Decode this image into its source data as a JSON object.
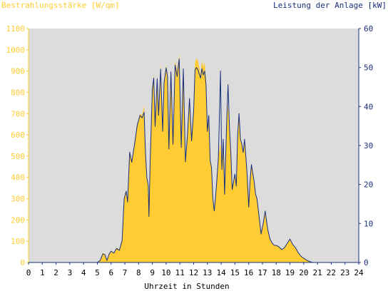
{
  "chart_data": {
    "type": "area",
    "title_left": "Bestrahlungsstärke [W/qm]",
    "title_right": "Leistung der Anlage [kW]",
    "xlabel": "Uhrzeit in Stunden",
    "xlim": [
      0,
      24
    ],
    "x_ticks": [
      0,
      1,
      2,
      3,
      4,
      5,
      6,
      7,
      8,
      9,
      10,
      11,
      12,
      13,
      14,
      15,
      16,
      17,
      18,
      19,
      20,
      21,
      22,
      23,
      24
    ],
    "y_left_lim": [
      0,
      1100
    ],
    "y_left_ticks": [
      0,
      100,
      200,
      300,
      400,
      500,
      600,
      700,
      800,
      900,
      1000,
      1100
    ],
    "y_right_lim": [
      0,
      60
    ],
    "y_right_ticks": [
      0,
      10,
      20,
      30,
      40,
      50,
      60
    ],
    "grid": false,
    "plot_background": "#dcdcdc",
    "series": [
      {
        "name": "Bestrahlungsstärke",
        "axis": "left",
        "style": "filled-area",
        "color": "#ffcc33",
        "points": [
          [
            0,
            0
          ],
          [
            5.0,
            0
          ],
          [
            5.2,
            10
          ],
          [
            5.4,
            45
          ],
          [
            5.55,
            40
          ],
          [
            5.7,
            10
          ],
          [
            5.85,
            40
          ],
          [
            6.0,
            55
          ],
          [
            6.2,
            45
          ],
          [
            6.4,
            70
          ],
          [
            6.6,
            60
          ],
          [
            6.8,
            110
          ],
          [
            6.95,
            300
          ],
          [
            7.1,
            340
          ],
          [
            7.2,
            280
          ],
          [
            7.35,
            520
          ],
          [
            7.5,
            480
          ],
          [
            7.7,
            560
          ],
          [
            7.9,
            650
          ],
          [
            8.1,
            700
          ],
          [
            8.25,
            690
          ],
          [
            8.4,
            740
          ],
          [
            8.5,
            520
          ],
          [
            8.6,
            400
          ],
          [
            8.7,
            360
          ],
          [
            8.75,
            220
          ],
          [
            8.85,
            500
          ],
          [
            9.0,
            820
          ],
          [
            9.1,
            880
          ],
          [
            9.2,
            640
          ],
          [
            9.35,
            870
          ],
          [
            9.45,
            700
          ],
          [
            9.6,
            940
          ],
          [
            9.75,
            620
          ],
          [
            9.85,
            850
          ],
          [
            10.0,
            930
          ],
          [
            10.1,
            880
          ],
          [
            10.2,
            540
          ],
          [
            10.35,
            900
          ],
          [
            10.5,
            560
          ],
          [
            10.65,
            950
          ],
          [
            10.8,
            900
          ],
          [
            10.95,
            980
          ],
          [
            11.1,
            550
          ],
          [
            11.25,
            920
          ],
          [
            11.4,
            480
          ],
          [
            11.55,
            600
          ],
          [
            11.7,
            780
          ],
          [
            11.85,
            580
          ],
          [
            12.0,
            720
          ],
          [
            12.1,
            940
          ],
          [
            12.2,
            960
          ],
          [
            12.3,
            950
          ],
          [
            12.4,
            920
          ],
          [
            12.5,
            880
          ],
          [
            12.6,
            950
          ],
          [
            12.7,
            920
          ],
          [
            12.8,
            940
          ],
          [
            12.9,
            860
          ],
          [
            13.0,
            620
          ],
          [
            13.1,
            700
          ],
          [
            13.2,
            480
          ],
          [
            13.3,
            450
          ],
          [
            13.4,
            300
          ],
          [
            13.5,
            250
          ],
          [
            13.65,
            360
          ],
          [
            13.8,
            500
          ],
          [
            13.95,
            560
          ],
          [
            14.05,
            440
          ],
          [
            14.15,
            580
          ],
          [
            14.25,
            320
          ],
          [
            14.4,
            660
          ],
          [
            14.5,
            740
          ],
          [
            14.6,
            640
          ],
          [
            14.7,
            520
          ],
          [
            14.8,
            340
          ],
          [
            14.9,
            380
          ],
          [
            15.0,
            420
          ],
          [
            15.1,
            360
          ],
          [
            15.2,
            600
          ],
          [
            15.3,
            700
          ],
          [
            15.4,
            580
          ],
          [
            15.5,
            560
          ],
          [
            15.6,
            520
          ],
          [
            15.7,
            580
          ],
          [
            15.8,
            500
          ],
          [
            15.9,
            400
          ],
          [
            16.0,
            260
          ],
          [
            16.1,
            380
          ],
          [
            16.2,
            460
          ],
          [
            16.3,
            420
          ],
          [
            16.4,
            380
          ],
          [
            16.5,
            320
          ],
          [
            16.6,
            300
          ],
          [
            16.75,
            220
          ],
          [
            16.9,
            130
          ],
          [
            17.05,
            180
          ],
          [
            17.2,
            240
          ],
          [
            17.3,
            190
          ],
          [
            17.4,
            150
          ],
          [
            17.55,
            110
          ],
          [
            17.7,
            90
          ],
          [
            17.85,
            80
          ],
          [
            18.0,
            80
          ],
          [
            18.2,
            75
          ],
          [
            18.4,
            60
          ],
          [
            18.6,
            70
          ],
          [
            18.8,
            90
          ],
          [
            19.0,
            110
          ],
          [
            19.2,
            85
          ],
          [
            19.4,
            70
          ],
          [
            19.6,
            45
          ],
          [
            19.8,
            30
          ],
          [
            20.0,
            20
          ],
          [
            20.2,
            12
          ],
          [
            20.4,
            6
          ],
          [
            20.55,
            2
          ],
          [
            20.7,
            0
          ],
          [
            24,
            0
          ]
        ]
      },
      {
        "name": "Leistung der Anlage",
        "axis": "right",
        "style": "line",
        "color": "#1a2f7a",
        "points": [
          [
            0,
            0
          ],
          [
            5.0,
            0
          ],
          [
            5.2,
            0.5
          ],
          [
            5.4,
            2.2
          ],
          [
            5.55,
            2.0
          ],
          [
            5.7,
            0.5
          ],
          [
            5.85,
            2.1
          ],
          [
            6.0,
            2.9
          ],
          [
            6.2,
            2.4
          ],
          [
            6.4,
            3.6
          ],
          [
            6.6,
            3.1
          ],
          [
            6.8,
            5.6
          ],
          [
            6.95,
            16.4
          ],
          [
            7.1,
            18.3
          ],
          [
            7.2,
            15.5
          ],
          [
            7.35,
            28.3
          ],
          [
            7.5,
            25.7
          ],
          [
            7.7,
            30.2
          ],
          [
            7.9,
            35.2
          ],
          [
            8.1,
            37.7
          ],
          [
            8.25,
            37.1
          ],
          [
            8.4,
            38.5
          ],
          [
            8.5,
            28.0
          ],
          [
            8.6,
            21.7
          ],
          [
            8.7,
            19.8
          ],
          [
            8.75,
            11.8
          ],
          [
            8.85,
            27.0
          ],
          [
            9.0,
            44.6
          ],
          [
            9.1,
            47.3
          ],
          [
            9.2,
            34.9
          ],
          [
            9.35,
            47.1
          ],
          [
            9.45,
            37.7
          ],
          [
            9.6,
            49.6
          ],
          [
            9.75,
            33.6
          ],
          [
            9.85,
            46.1
          ],
          [
            10.0,
            49.9
          ],
          [
            10.1,
            47.7
          ],
          [
            10.2,
            29.1
          ],
          [
            10.35,
            48.9
          ],
          [
            10.5,
            30.3
          ],
          [
            10.65,
            50.6
          ],
          [
            10.8,
            47.7
          ],
          [
            10.95,
            52.2
          ],
          [
            11.1,
            29.5
          ],
          [
            11.25,
            49.7
          ],
          [
            11.4,
            25.8
          ],
          [
            11.55,
            32.6
          ],
          [
            11.7,
            42.1
          ],
          [
            11.85,
            31.2
          ],
          [
            12.0,
            38.9
          ],
          [
            12.1,
            49.4
          ],
          [
            12.2,
            50.0
          ],
          [
            12.3,
            49.5
          ],
          [
            12.4,
            48.4
          ],
          [
            12.5,
            47.3
          ],
          [
            12.6,
            49.7
          ],
          [
            12.7,
            48.1
          ],
          [
            12.8,
            49.1
          ],
          [
            12.9,
            45.6
          ],
          [
            13.0,
            33.6
          ],
          [
            13.1,
            37.7
          ],
          [
            13.2,
            26.2
          ],
          [
            13.3,
            24.3
          ],
          [
            13.4,
            16.2
          ],
          [
            13.5,
            13.2
          ],
          [
            13.65,
            19.3
          ],
          [
            13.8,
            27.0
          ],
          [
            13.95,
            49.1
          ],
          [
            14.05,
            23.8
          ],
          [
            14.15,
            31.6
          ],
          [
            14.25,
            17.5
          ],
          [
            14.4,
            36.0
          ],
          [
            14.5,
            45.6
          ],
          [
            14.6,
            34.9
          ],
          [
            14.7,
            28.2
          ],
          [
            14.8,
            18.7
          ],
          [
            14.9,
            20.7
          ],
          [
            15.0,
            22.7
          ],
          [
            15.1,
            19.6
          ],
          [
            15.2,
            32.8
          ],
          [
            15.3,
            38.2
          ],
          [
            15.4,
            31.6
          ],
          [
            15.5,
            30.4
          ],
          [
            15.6,
            28.2
          ],
          [
            15.7,
            31.6
          ],
          [
            15.8,
            27.0
          ],
          [
            15.9,
            21.8
          ],
          [
            16.0,
            14.2
          ],
          [
            16.1,
            20.9
          ],
          [
            16.2,
            25.1
          ],
          [
            16.3,
            22.9
          ],
          [
            16.4,
            20.7
          ],
          [
            16.5,
            17.5
          ],
          [
            16.6,
            16.4
          ],
          [
            16.75,
            12.0
          ],
          [
            16.9,
            7.3
          ],
          [
            17.05,
            9.9
          ],
          [
            17.2,
            13.2
          ],
          [
            17.3,
            10.5
          ],
          [
            17.4,
            8.2
          ],
          [
            17.55,
            6.0
          ],
          [
            17.7,
            5.0
          ],
          [
            17.85,
            4.4
          ],
          [
            18.0,
            4.4
          ],
          [
            18.2,
            4.0
          ],
          [
            18.4,
            3.3
          ],
          [
            18.6,
            3.8
          ],
          [
            18.8,
            4.9
          ],
          [
            19.0,
            6.0
          ],
          [
            19.2,
            4.6
          ],
          [
            19.4,
            3.8
          ],
          [
            19.6,
            2.5
          ],
          [
            19.8,
            1.6
          ],
          [
            20.0,
            1.1
          ],
          [
            20.2,
            0.6
          ],
          [
            20.4,
            0.3
          ],
          [
            20.55,
            0.1
          ],
          [
            20.7,
            0
          ],
          [
            24,
            0
          ]
        ]
      }
    ]
  }
}
